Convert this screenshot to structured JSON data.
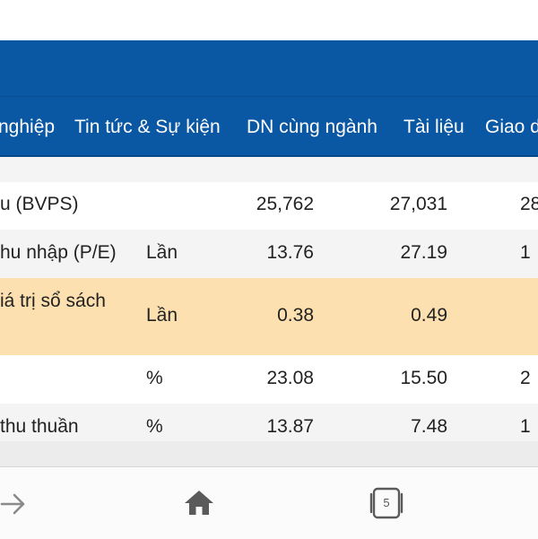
{
  "nav": {
    "tabs": [
      {
        "label": "nghiệp"
      },
      {
        "label": "Tin tức & Sự kiện"
      },
      {
        "label": "DN cùng ngành"
      },
      {
        "label": "Tài liệu"
      },
      {
        "label": "Giao d"
      }
    ]
  },
  "table": {
    "rows": [
      {
        "label": "u (BVPS)",
        "unit": "",
        "v1": "25,762",
        "v2": "27,031",
        "v3": "28",
        "highlight": false
      },
      {
        "label": "hu nhập (P/E)",
        "unit": "Lần",
        "v1": "13.76",
        "v2": "27.19",
        "v3": "1",
        "highlight": false
      },
      {
        "label": "iá trị sổ sách",
        "unit": "Lần",
        "v1": "0.38",
        "v2": "0.49",
        "v3": "",
        "highlight": true
      },
      {
        "label": "",
        "unit": "%",
        "v1": "23.08",
        "v2": "15.50",
        "v3": "2",
        "highlight": false
      },
      {
        "label": "thu thuần",
        "unit": "%",
        "v1": "13.87",
        "v2": "7.48",
        "v3": "1",
        "highlight": false
      }
    ]
  },
  "bottom_nav": {
    "forward_icon": "arrow-right-icon",
    "home_icon": "home-icon",
    "tabs_count": "5"
  },
  "colors": {
    "header_blue": "#0a57a4",
    "highlight_row": "#fde0b0"
  }
}
